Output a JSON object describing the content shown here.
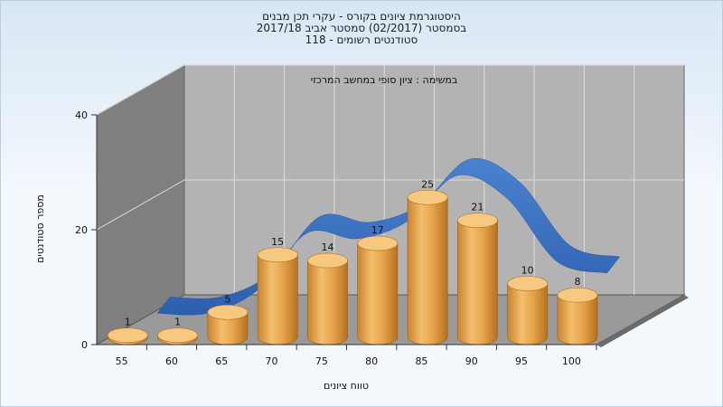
{
  "titles": {
    "line1": "היסטוגרמת ציונים בקורס - עקרי תכן מבנים",
    "line2": "בסמסטר  (02/2017)  סמסטר אביב 2017/18",
    "line3": "סטודנטים רשומים - 118"
  },
  "chart_data": {
    "type": "bar",
    "title": "היסטוגרמת ציונים בקורס - עקרי תכן מבנים",
    "subtitle": "במשימה : ציון סופי במחשב המרכזי",
    "xlabel": "טווח ציונים",
    "ylabel": "מספר סטודנטים",
    "categories": [
      "55",
      "60",
      "65",
      "70",
      "75",
      "80",
      "85",
      "90",
      "95",
      "100"
    ],
    "values": [
      1,
      1,
      5,
      15,
      14,
      17,
      25,
      21,
      10,
      8
    ],
    "ylim": [
      0,
      40
    ],
    "yticks": [
      "0",
      "20",
      "40"
    ],
    "grid": true,
    "style": "3d-cylinder",
    "trend_line": "smoothed ribbon behind bars",
    "colors": {
      "bar": "#e7a84f",
      "bar_top": "#f6c77e",
      "ribbon": "#3a70c0",
      "back_wall": "#b2b2b2",
      "side_wall": "#7e7e7e",
      "floor": "#999999"
    }
  }
}
